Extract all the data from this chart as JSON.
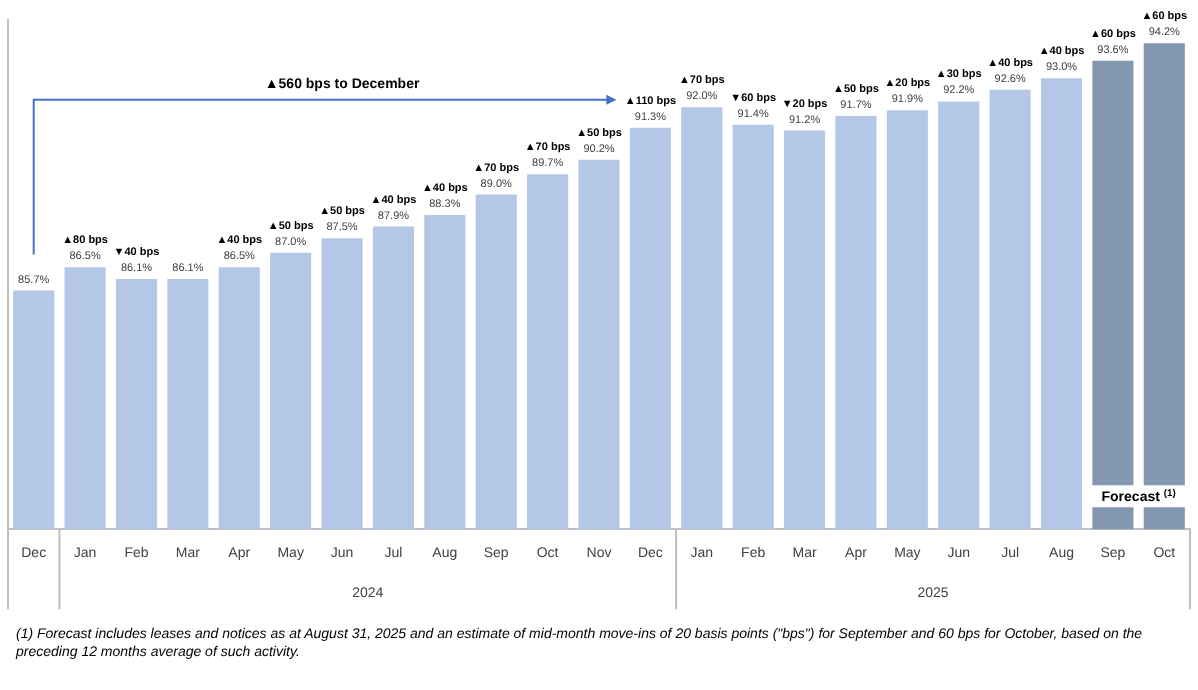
{
  "chart_data": {
    "type": "bar",
    "categories": [
      "Dec",
      "Jan",
      "Feb",
      "Mar",
      "Apr",
      "May",
      "Jun",
      "Jul",
      "Aug",
      "Sep",
      "Oct",
      "Nov",
      "Dec",
      "Jan",
      "Feb",
      "Mar",
      "Apr",
      "May",
      "Jun",
      "Jul",
      "Aug",
      "Sep",
      "Oct"
    ],
    "values": [
      85.7,
      86.5,
      86.1,
      86.1,
      86.5,
      87.0,
      87.5,
      87.9,
      88.3,
      89.0,
      89.7,
      90.2,
      91.3,
      92.0,
      91.4,
      91.2,
      91.7,
      91.9,
      92.2,
      92.6,
      93.0,
      93.6,
      94.2
    ],
    "colors": [
      "#b4c7e7",
      "#b4c7e7",
      "#b4c7e7",
      "#b4c7e7",
      "#b4c7e7",
      "#b4c7e7",
      "#b4c7e7",
      "#b4c7e7",
      "#b4c7e7",
      "#b4c7e7",
      "#b4c7e7",
      "#b4c7e7",
      "#b4c7e7",
      "#b4c7e7",
      "#b4c7e7",
      "#b4c7e7",
      "#b4c7e7",
      "#b4c7e7",
      "#b4c7e7",
      "#b4c7e7",
      "#b4c7e7",
      "#8497b0",
      "#8497b0"
    ],
    "value_labels": [
      "85.7%",
      "▲80 bps\n86.5%",
      "▼40 bps\n86.1%",
      "86.1%",
      "▲40 bps\n86.5%",
      "▲50 bps\n87.0%",
      "▲50 bps\n87.5%",
      "▲40 bps\n87.9%",
      "▲40 bps\n88.3%",
      "▲70 bps\n89.0%",
      "▲70 bps\n89.7%",
      "▲50 bps\n90.2%",
      "▲110 bps\n91.3%",
      "▲70 bps\n92.0%",
      "▼60 bps\n91.4%",
      "▼20 bps\n91.2%",
      "▲50 bps\n91.7%",
      "▲20 bps\n91.9%",
      "▲30 bps\n92.2%",
      "▲40 bps\n92.6%",
      "▲40 bps\n93.0%",
      "▲60 bps\n93.6%",
      "▲60 bps\n94.2%"
    ],
    "ylim": [
      77.5,
      95
    ],
    "tick_labels": "x",
    "grid": false,
    "legend": false,
    "annotations": [
      "▲560 bps to December",
      "2024",
      "2025",
      "Forecast $^{(1)}$",
      "(1) Forecast includes leases and notices as at August 31, 2025 and an estimate of mid-month move-ins of 20 basis points (\"bps\") for September and 60 bps for October, based on the preceding 12 months average of such activity."
    ]
  }
}
